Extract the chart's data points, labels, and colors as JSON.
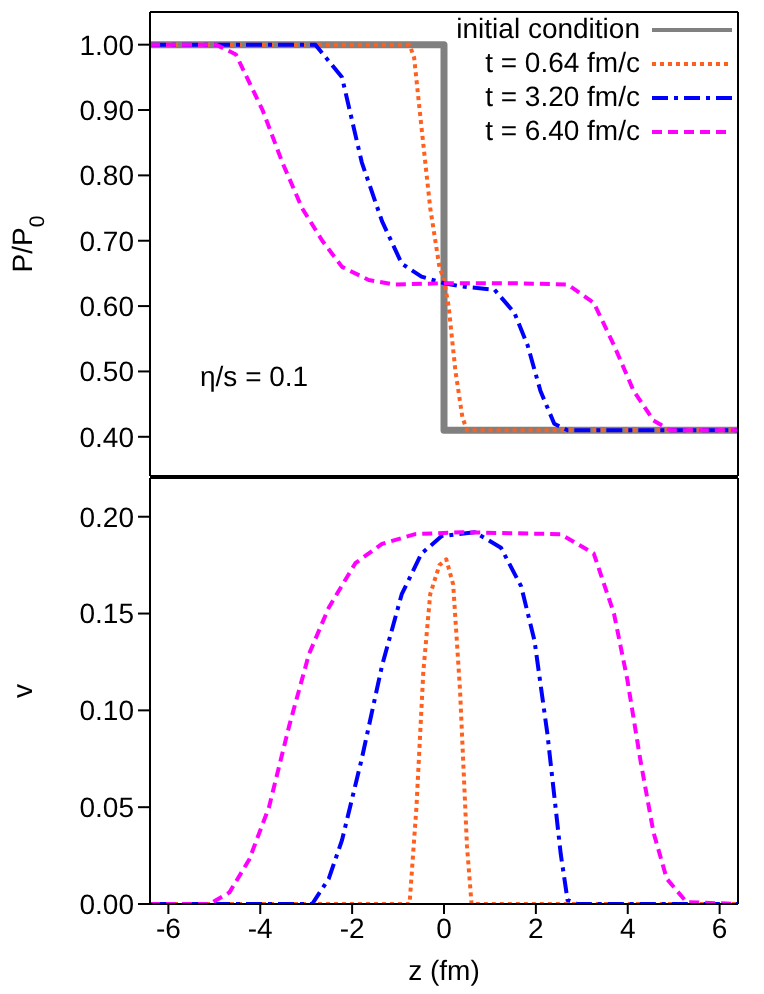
{
  "chart_data": [
    {
      "type": "line",
      "ylabel": "P/P$_{0}$",
      "xlim": [
        -6.4,
        6.4
      ],
      "xticks": [
        -6,
        -4,
        -2,
        0,
        2,
        4,
        6
      ],
      "ylim": [
        0.34,
        1.05
      ],
      "yticks": [
        {
          "value": 0.4,
          "label": "0.40"
        },
        {
          "value": 0.5,
          "label": "0.50"
        },
        {
          "value": 0.6,
          "label": "0.60"
        },
        {
          "value": 0.7,
          "label": "0.70"
        },
        {
          "value": 0.8,
          "label": "0.80"
        },
        {
          "value": 0.9,
          "label": "0.90"
        },
        {
          "value": 1.0,
          "label": "1.00"
        }
      ],
      "tick_labels": "y",
      "grid": false,
      "legend": "top right",
      "annotations": [
        "η/s = 0.1"
      ],
      "series": [
        {
          "name": "initial condition",
          "color": "#808080",
          "line_style": "solid",
          "x": [
            -6.4,
            0,
            0,
            6.4
          ],
          "values": [
            1.0,
            1.0,
            0.41,
            0.41
          ]
        },
        {
          "name": "t = 0.64 fm/c",
          "color": "#ff6020",
          "line_style": "dotted",
          "x": [
            -6.4,
            -0.75,
            -0.65,
            -0.5,
            -0.3,
            -0.1,
            0,
            0.1,
            0.25,
            0.4,
            0.5,
            6.4
          ],
          "values": [
            1.0,
            1.0,
            0.98,
            0.88,
            0.75,
            0.66,
            0.64,
            0.6,
            0.5,
            0.43,
            0.41,
            0.41
          ]
        },
        {
          "name": "t = 3.20 fm/c",
          "color": "#0000ff",
          "line_style": "dashdot",
          "x": [
            -6.4,
            -2.8,
            -2.22,
            -1.79,
            -1.35,
            -0.92,
            -0.49,
            0,
            0.38,
            1.1,
            1.53,
            1.82,
            2.1,
            2.4,
            2.69,
            6.4
          ],
          "values": [
            1.0,
            1.0,
            0.95,
            0.82,
            0.73,
            0.665,
            0.645,
            0.635,
            0.63,
            0.625,
            0.59,
            0.54,
            0.47,
            0.42,
            0.41,
            0.41
          ]
        },
        {
          "name": "t = 6.40 fm/c",
          "color": "#ff00ff",
          "line_style": "dashed",
          "x": [
            -6.4,
            -4.96,
            -4.53,
            -3.95,
            -3.52,
            -3.09,
            -2.65,
            -2.22,
            -1.64,
            -1.07,
            0,
            1.5,
            2.69,
            3.26,
            3.7,
            4.13,
            4.56,
            4.92,
            6.4
          ],
          "values": [
            1.0,
            1.0,
            0.985,
            0.9,
            0.82,
            0.75,
            0.7,
            0.66,
            0.64,
            0.633,
            0.635,
            0.635,
            0.633,
            0.605,
            0.54,
            0.47,
            0.425,
            0.41,
            0.41
          ]
        }
      ]
    },
    {
      "type": "line",
      "xlabel": "z (fm)",
      "ylabel": "v",
      "xlim": [
        -6.4,
        6.4
      ],
      "xticks": [
        -6,
        -4,
        -2,
        0,
        2,
        4,
        6
      ],
      "ylim": [
        0,
        0.22
      ],
      "yticks": [
        {
          "value": 0,
          "label": "0.00"
        },
        {
          "value": 0.05,
          "label": "0.05"
        },
        {
          "value": 0.1,
          "label": "0.10"
        },
        {
          "value": 0.15,
          "label": "0.15"
        },
        {
          "value": 0.2,
          "label": "0.20"
        }
      ],
      "grid": false,
      "legend": false,
      "series": [
        {
          "color": "#ff6020",
          "line_style": "dotted",
          "x": [
            -6.4,
            -0.75,
            -0.6,
            -0.45,
            -0.3,
            -0.1,
            0.05,
            0.2,
            0.35,
            0.5,
            0.6,
            6.4
          ],
          "values": [
            0,
            0,
            0.05,
            0.12,
            0.16,
            0.175,
            0.178,
            0.165,
            0.11,
            0.03,
            0,
            0
          ]
        },
        {
          "color": "#0000ff",
          "line_style": "dashdot",
          "x": [
            -6.4,
            -2.87,
            -2.51,
            -2.22,
            -1.79,
            -1.35,
            -0.92,
            -0.49,
            -0.05,
            0.67,
            1.24,
            1.68,
            1.97,
            2.25,
            2.54,
            2.69,
            2.9,
            6.4
          ],
          "values": [
            0,
            0,
            0.013,
            0.033,
            0.075,
            0.123,
            0.16,
            0.181,
            0.19,
            0.192,
            0.184,
            0.164,
            0.136,
            0.088,
            0.026,
            0.002,
            0,
            0
          ]
        },
        {
          "color": "#ff00ff",
          "line_style": "dashed",
          "x": [
            -6.4,
            -5.1,
            -4.67,
            -4.24,
            -3.81,
            -3.37,
            -2.94,
            -2.51,
            -1.93,
            -1.35,
            -0.63,
            0.38,
            2.54,
            3.26,
            3.7,
            3.99,
            4.27,
            4.56,
            4.85,
            5.28,
            6.4
          ],
          "values": [
            0,
            0,
            0.006,
            0.023,
            0.05,
            0.092,
            0.129,
            0.153,
            0.176,
            0.186,
            0.191,
            0.192,
            0.191,
            0.181,
            0.15,
            0.116,
            0.075,
            0.037,
            0.013,
            0.001,
            0
          ]
        }
      ]
    }
  ]
}
